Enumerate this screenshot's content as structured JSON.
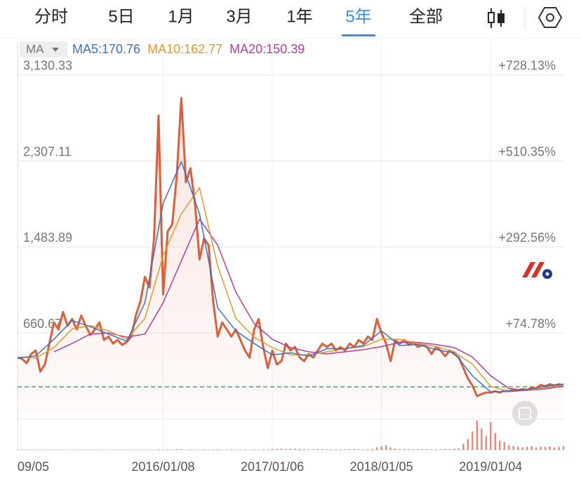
{
  "tabs": [
    "分时",
    "5日",
    "1月",
    "3月",
    "1年",
    "5年",
    "全部"
  ],
  "selected_tab": 5,
  "indicator": "MA",
  "chart_data": {
    "type": "line",
    "xlim": [
      0,
      120
    ],
    "xticks": [
      {
        "value": 0,
        "label": "09/05"
      },
      {
        "value": 32,
        "label": "2016/01/08"
      },
      {
        "value": 56,
        "label": "2017/01/06"
      },
      {
        "value": 80,
        "label": "2018/01/05"
      },
      {
        "value": 104,
        "label": "2019/01/04"
      }
    ],
    "ylim": [
      -110,
      3445
    ],
    "yticks": [
      {
        "value": 3130.33,
        "label": "3,130.33"
      },
      {
        "value": 2307.11,
        "label": "2,307.11"
      },
      {
        "value": 1483.89,
        "label": "1,483.89"
      },
      {
        "value": 660.67,
        "label": "660.67"
      }
    ],
    "y2lim": [
      -129.1,
      811.4
    ],
    "y2ticks": [
      {
        "value": 728.13,
        "label": "+728.13%"
      },
      {
        "value": 510.35,
        "label": "+510.35%"
      },
      {
        "value": 292.56,
        "label": "+292.56%"
      },
      {
        "value": 74.78,
        "label": "+74.78%"
      }
    ],
    "reference_line": 145,
    "reference_color": "#3aa86b",
    "grid": true,
    "series": [
      {
        "color": "#d9603b",
        "values": [
          425,
          412,
          371,
          459,
          492,
          291,
          358,
          559,
          761,
          694,
          861,
          727,
          794,
          694,
          828,
          727,
          640,
          694,
          761,
          593,
          626,
          559,
          593,
          546,
          573,
          626,
          828,
          962,
          1197,
          1096,
          1566,
          2741,
          1029,
          1633,
          1700,
          2170,
          2909,
          2103,
          2237,
          1902,
          1365,
          1566,
          1499,
          962,
          626,
          761,
          694,
          626,
          694,
          593,
          492,
          425,
          694,
          794,
          526,
          324,
          492,
          358,
          391,
          559,
          492,
          526,
          425,
          391,
          459,
          425,
          492,
          559,
          526,
          559,
          492,
          526,
          492,
          559,
          526,
          593,
          559,
          626,
          593,
          794,
          660,
          559,
          391,
          593,
          559,
          593,
          546,
          573,
          526,
          546,
          526,
          459,
          526,
          492,
          438,
          492,
          459,
          425,
          324,
          224,
          157,
          56,
          76,
          90,
          90,
          103,
          90,
          110,
          103,
          116,
          110,
          123,
          116,
          136,
          130,
          163,
          150,
          170,
          157,
          170,
          157
        ]
      },
      {
        "name": "MA5:170.76",
        "color": "#3d6fc7",
        "x": [
          0,
          4,
          8,
          12,
          16,
          20,
          24,
          28,
          32,
          36,
          40,
          44,
          48,
          52,
          56,
          60,
          64,
          68,
          72,
          76,
          80,
          84,
          88,
          92,
          96,
          100,
          104,
          108,
          112,
          116,
          120
        ],
        "values": [
          420,
          440,
          600,
          780,
          720,
          650,
          580,
          950,
          1900,
          2300,
          1800,
          900,
          680,
          560,
          450,
          470,
          440,
          510,
          510,
          540,
          680,
          540,
          550,
          500,
          470,
          250,
          95,
          100,
          115,
          150,
          170.76
        ]
      },
      {
        "name": "MA10:162.77",
        "color": "#e09a2c",
        "x": [
          0,
          4,
          8,
          12,
          16,
          20,
          24,
          28,
          32,
          36,
          40,
          44,
          48,
          52,
          56,
          60,
          64,
          68,
          72,
          76,
          80,
          84,
          88,
          92,
          96,
          100,
          104,
          108,
          112,
          116,
          120
        ],
        "values": [
          430,
          420,
          520,
          700,
          730,
          680,
          600,
          800,
          1400,
          1800,
          2050,
          1300,
          800,
          620,
          520,
          450,
          450,
          480,
          510,
          530,
          600,
          600,
          560,
          530,
          480,
          360,
          150,
          100,
          110,
          135,
          162.77
        ]
      },
      {
        "name": "MA20:150.39",
        "color": "#b83c9a",
        "x": [
          8,
          12,
          16,
          20,
          24,
          28,
          32,
          36,
          40,
          44,
          48,
          52,
          56,
          60,
          64,
          68,
          72,
          76,
          80,
          84,
          88,
          92,
          96,
          100,
          104,
          108,
          112,
          116,
          120
        ],
        "values": [
          480,
          560,
          650,
          660,
          620,
          650,
          950,
          1350,
          1750,
          1500,
          1050,
          750,
          600,
          520,
          480,
          460,
          480,
          500,
          530,
          570,
          570,
          550,
          520,
          430,
          250,
          130,
          110,
          125,
          150.39
        ]
      }
    ],
    "volume": {
      "color": "#e06a55",
      "ylim": [
        0,
        100
      ],
      "values": [
        1,
        1,
        1,
        1,
        1,
        1,
        1,
        1,
        1,
        1,
        1,
        1,
        1,
        1,
        1,
        1,
        1,
        1,
        1,
        1,
        1,
        1,
        1,
        1,
        1,
        1,
        1,
        1,
        1,
        1,
        1,
        2,
        1,
        2,
        1,
        2,
        2,
        1,
        2,
        1,
        1,
        2,
        1,
        1,
        2,
        1,
        1,
        2,
        1,
        1,
        2,
        1,
        2,
        1,
        2,
        2,
        3,
        3,
        4,
        3,
        3,
        4,
        3,
        3,
        2,
        2,
        2,
        2,
        2,
        2,
        2,
        2,
        2,
        2,
        2,
        2,
        2,
        2,
        3,
        8,
        12,
        15,
        8,
        4,
        3,
        3,
        2,
        2,
        2,
        2,
        2,
        2,
        2,
        2,
        3,
        3,
        4,
        5,
        20,
        35,
        60,
        95,
        70,
        45,
        90,
        55,
        30,
        25,
        15,
        12,
        10,
        8,
        10,
        12,
        8,
        10,
        9,
        11,
        8,
        10,
        12
      ]
    }
  }
}
